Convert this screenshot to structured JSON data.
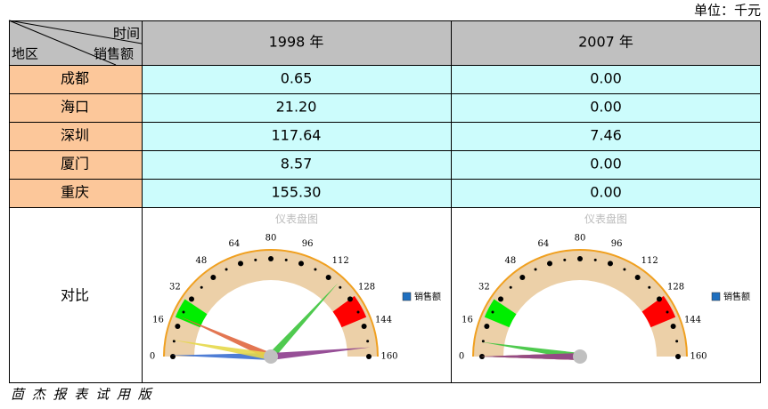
{
  "unit": "单位：千元",
  "table": {
    "corner": {
      "top": "时间",
      "left": "地区",
      "bottom": "销售额"
    },
    "columns": [
      "1998 年",
      "2007 年"
    ],
    "rows": [
      {
        "region": "成都",
        "values": [
          0.65,
          0
        ],
        "value_labels": [
          "0.65",
          "0.00"
        ]
      },
      {
        "region": "海口",
        "values": [
          21.2,
          0
        ],
        "value_labels": [
          "21.20",
          "0.00"
        ]
      },
      {
        "region": "深圳",
        "values": [
          117.64,
          7.46
        ],
        "value_labels": [
          "117.64",
          "7.46"
        ]
      },
      {
        "region": "厦门",
        "values": [
          8.57,
          0
        ],
        "value_labels": [
          "8.57",
          "0.00"
        ]
      },
      {
        "region": "重庆",
        "values": [
          155.3,
          0
        ],
        "value_labels": [
          "155.30",
          "0.00"
        ]
      }
    ],
    "compare_label": "对比"
  },
  "gauge": {
    "title": "仪表盘图",
    "legend": "销售额",
    "legend_color": "#1f6fbf",
    "range": [
      0,
      160
    ],
    "ticks": [
      0,
      16,
      32,
      48,
      64,
      80,
      96,
      112,
      128,
      144,
      160
    ],
    "bands": [
      {
        "from": 20,
        "to": 30,
        "color": "#00ee00"
      },
      {
        "from": 128,
        "to": 140,
        "color": "#ff0000"
      }
    ],
    "needle_colors": [
      "#3b6fd0",
      "#e0673f",
      "#3cc43c",
      "#e6d84a",
      "#8c3c8c"
    ]
  },
  "footer": "茴 杰 报 表 试 用 版"
}
